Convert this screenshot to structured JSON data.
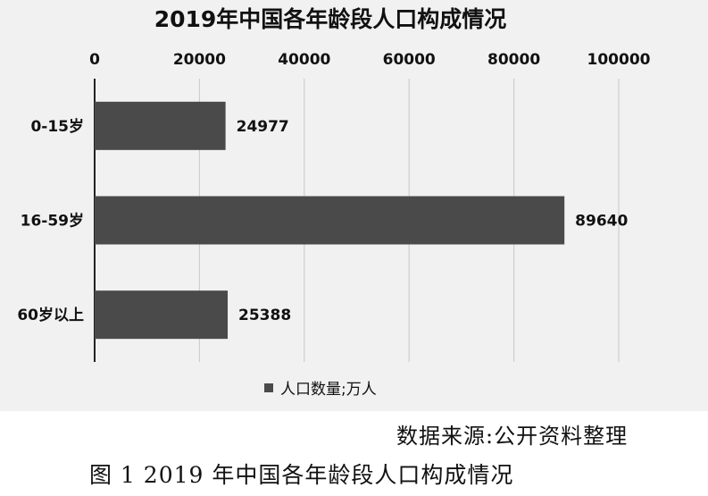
{
  "chart_data": {
    "type": "bar",
    "orientation": "horizontal",
    "title": "2019年中国各年龄段人口构成情况",
    "categories": [
      "0-15岁",
      "16-59岁",
      "60岁以上"
    ],
    "series": [
      {
        "name": "人口数量;万人",
        "values": [
          24977,
          89640,
          25388
        ],
        "color": "#4a4a4a"
      }
    ],
    "data_labels": [
      "24977",
      "89640",
      "25388"
    ],
    "xlim": [
      0,
      100000
    ],
    "x_ticks": [
      0,
      20000,
      40000,
      60000,
      80000,
      100000
    ],
    "x_tick_labels": [
      "0",
      "20000",
      "40000",
      "60000",
      "80000",
      "100000"
    ],
    "x_axis_position": "top",
    "grid": true,
    "legend_position": "bottom"
  },
  "source_note": "数据来源:公开资料整理",
  "caption": "图 1 2019 年中国各年龄段人口构成情况"
}
